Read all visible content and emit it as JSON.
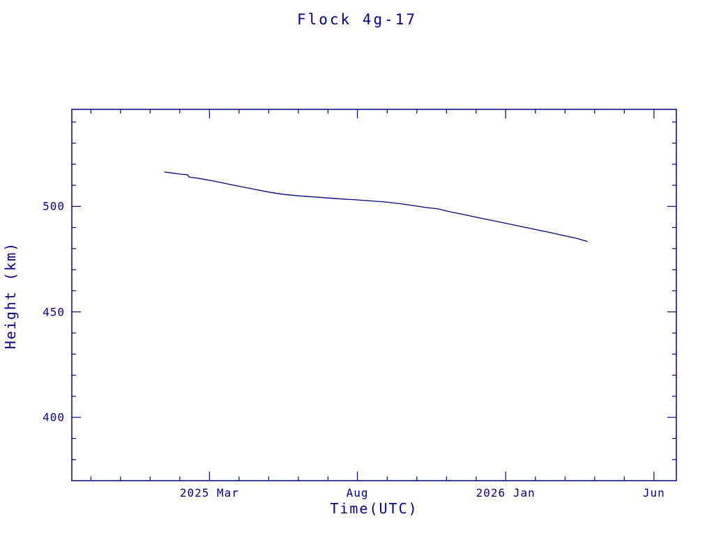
{
  "page": {
    "background": "#ffffff",
    "accent_color": "#000080"
  },
  "chart_data": {
    "type": "line",
    "title": "Flock 4g-17",
    "xlabel": "Time(UTC)",
    "ylabel": "Height (km)",
    "line_color": "#000080",
    "frame_color": "#000080",
    "grid": false,
    "legend": false,
    "xlim": [
      2024.78,
      2026.48
    ],
    "ylim": [
      370,
      546
    ],
    "xticks": [
      {
        "value": 2025.167,
        "label": "2025 Mar"
      },
      {
        "value": 2025.583,
        "label": "Aug"
      },
      {
        "value": 2026.0,
        "label": "2026 Jan"
      },
      {
        "value": 2026.417,
        "label": "Jun"
      }
    ],
    "xminor_step": 0.0833333,
    "yticks": [
      {
        "value": 400,
        "label": "400"
      },
      {
        "value": 450,
        "label": "450"
      },
      {
        "value": 500,
        "label": "500"
      }
    ],
    "yminor_step": 10,
    "series": [
      {
        "name": "height",
        "points": [
          [
            2025.04,
            516.3
          ],
          [
            2025.06,
            515.9
          ],
          [
            2025.085,
            515.3
          ],
          [
            2025.105,
            515.0
          ],
          [
            2025.11,
            513.9
          ],
          [
            2025.14,
            513.2
          ],
          [
            2025.18,
            512.0
          ],
          [
            2025.22,
            510.6
          ],
          [
            2025.26,
            509.2
          ],
          [
            2025.3,
            507.9
          ],
          [
            2025.34,
            506.6
          ],
          [
            2025.38,
            505.6
          ],
          [
            2025.42,
            505.0
          ],
          [
            2025.46,
            504.5
          ],
          [
            2025.5,
            504.0
          ],
          [
            2025.54,
            503.5
          ],
          [
            2025.58,
            503.1
          ],
          [
            2025.62,
            502.6
          ],
          [
            2025.66,
            502.1
          ],
          [
            2025.7,
            501.4
          ],
          [
            2025.74,
            500.4
          ],
          [
            2025.78,
            499.4
          ],
          [
            2025.81,
            498.8
          ],
          [
            2025.84,
            497.6
          ],
          [
            2025.88,
            496.2
          ],
          [
            2025.92,
            494.8
          ],
          [
            2025.96,
            493.4
          ],
          [
            2026.0,
            492.0
          ],
          [
            2026.04,
            490.6
          ],
          [
            2026.08,
            489.2
          ],
          [
            2026.12,
            487.8
          ],
          [
            2026.16,
            486.3
          ],
          [
            2026.2,
            484.8
          ],
          [
            2026.23,
            483.4
          ]
        ]
      }
    ]
  }
}
